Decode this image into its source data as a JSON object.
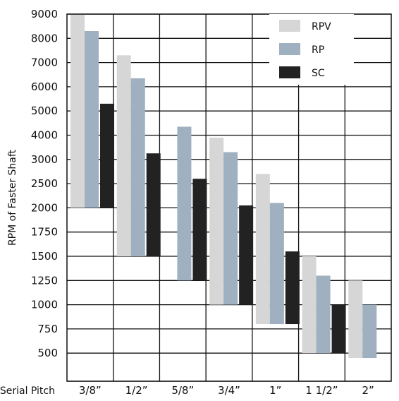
{
  "chart_data": {
    "type": "bar",
    "ylabel": "RPM of Faster Shaft",
    "xlabel": "Serial Pitch",
    "y_ticks": [
      "9000",
      "8000",
      "7000",
      "6000",
      "5000",
      "4000",
      "3000",
      "2500",
      "2000",
      "1750",
      "1500",
      "1250",
      "1000",
      "750",
      "500"
    ],
    "categories": [
      "3/8”",
      "1/2”",
      "5/8”",
      "3/4”",
      "1”",
      "1 1/2”",
      "2”"
    ],
    "series": [
      {
        "name": "RPV",
        "color": "#d6d6d6",
        "ranges": [
          [
            2000,
            9000
          ],
          [
            1500,
            7300
          ],
          null,
          [
            1000,
            3900
          ],
          [
            800,
            2700
          ],
          [
            500,
            1500
          ],
          [
            450,
            1250
          ]
        ]
      },
      {
        "name": "RP",
        "color": "#9fb0c0",
        "ranges": [
          [
            2000,
            8300
          ],
          [
            1500,
            6350
          ],
          [
            1250,
            4350
          ],
          [
            1000,
            3300
          ],
          [
            800,
            2100
          ],
          [
            500,
            1300
          ],
          [
            450,
            1000
          ]
        ]
      },
      {
        "name": "SC",
        "color": "#222222",
        "ranges": [
          [
            2000,
            5300
          ],
          [
            1500,
            3250
          ],
          [
            1250,
            2600
          ],
          [
            1000,
            2050
          ],
          [
            800,
            1550
          ],
          [
            500,
            1000
          ],
          null
        ]
      }
    ],
    "legend_position": "top-right",
    "grid": true
  }
}
